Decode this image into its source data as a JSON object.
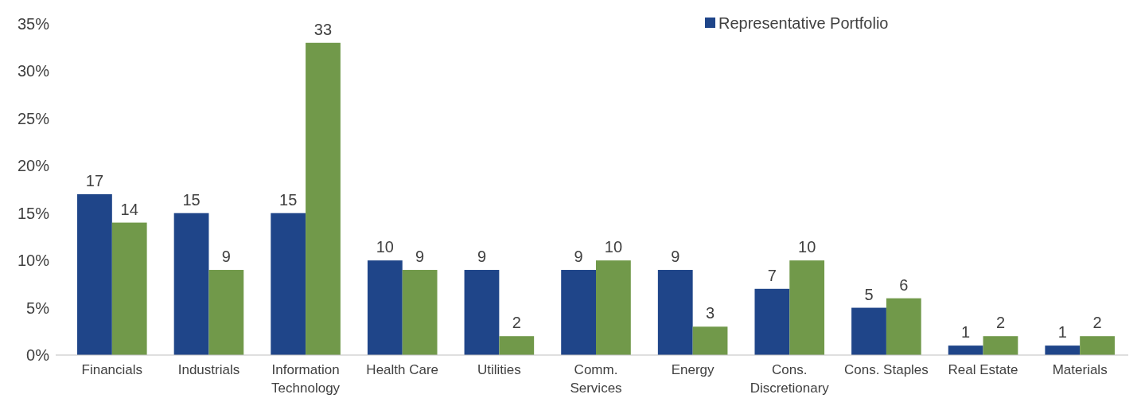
{
  "chart_data": {
    "type": "bar",
    "categories": [
      "Financials",
      "Industrials",
      "Information Technology",
      "Health Care",
      "Utilities",
      "Comm. Services",
      "Energy",
      "Cons. Discretionary",
      "Cons. Staples",
      "Real Estate",
      "Materials"
    ],
    "series": [
      {
        "name": "Representative Portfolio",
        "color": "#1f4589",
        "values": [
          17,
          15,
          15,
          10,
          9,
          9,
          9,
          7,
          5,
          1,
          1
        ]
      },
      {
        "color": "#71994a",
        "values": [
          14,
          9,
          33,
          9,
          2,
          10,
          3,
          10,
          6,
          2,
          2
        ]
      }
    ],
    "ylim": [
      0,
      35
    ],
    "yticks": [
      {
        "value": 0,
        "label": "0%"
      },
      {
        "value": 5,
        "label": "5%"
      },
      {
        "value": 10,
        "label": "10%"
      },
      {
        "value": 15,
        "label": "15%"
      },
      {
        "value": 20,
        "label": "20%"
      },
      {
        "value": 25,
        "label": "25%"
      },
      {
        "value": 30,
        "label": "30%"
      },
      {
        "value": 35,
        "label": "35%"
      }
    ],
    "data_labels": true,
    "legend": "top right",
    "grid": false
  }
}
